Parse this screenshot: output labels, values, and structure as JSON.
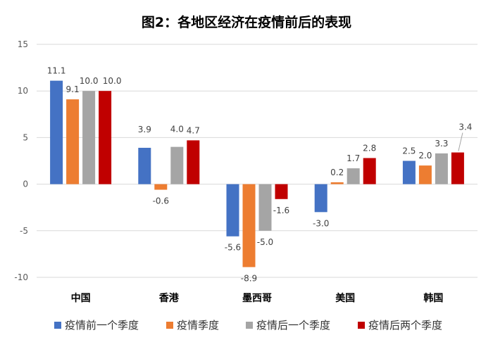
{
  "chart_data": {
    "type": "bar",
    "title": "图2：各地区经济在疫情前后的表现",
    "xlabel": "",
    "ylabel": "",
    "categories": [
      "中国",
      "香港",
      "墨西哥",
      "美国",
      "韩国"
    ],
    "series": [
      {
        "name": "疫情前一个季度",
        "color": "#4472C4",
        "values": [
          11.1,
          3.9,
          -5.6,
          -3.0,
          2.5
        ]
      },
      {
        "name": "疫情季度",
        "color": "#ED7D31",
        "values": [
          9.1,
          -0.6,
          -8.9,
          0.2,
          2.0
        ]
      },
      {
        "name": "疫情后一个季度",
        "color": "#A5A5A5",
        "values": [
          10.0,
          4.0,
          -5.0,
          1.7,
          3.3
        ]
      },
      {
        "name": "疫情后两个季度",
        "color": "#C00000",
        "values": [
          10.0,
          4.7,
          -1.6,
          2.8,
          3.4
        ]
      }
    ],
    "ylim": [
      -10,
      15
    ],
    "yticks": [
      15,
      10,
      5,
      0,
      -5,
      -10
    ],
    "grid": true,
    "legend": "bottom",
    "data_labels": true
  }
}
